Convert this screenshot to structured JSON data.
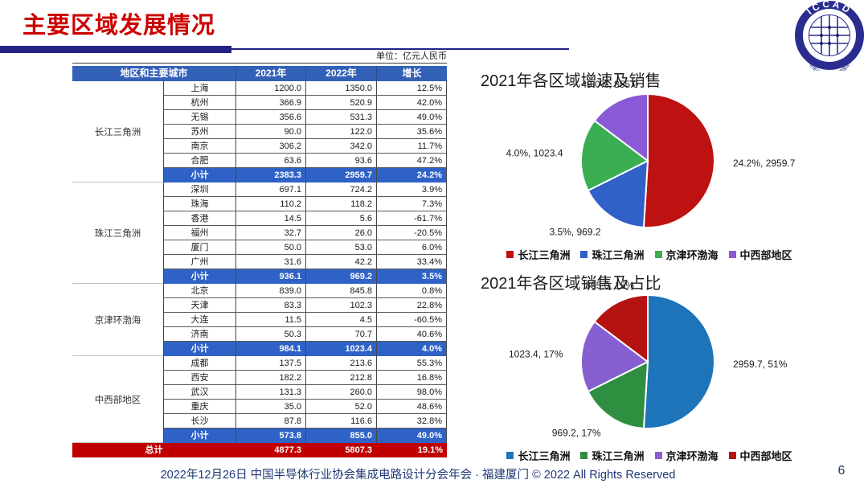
{
  "slide": {
    "title": "主要区域发展情况",
    "unit_label": "单位：亿元人民币",
    "footer": "2022年12月26日 中国半导体行业协会集成电路设计分会年会 · 福建厦门 © 2022 All Rights Reserved",
    "page_number": "6",
    "logo": {
      "acronym": "ICCAD",
      "ring_text": "中国半导体行业协会集成电路设计分会"
    }
  },
  "colors": {
    "title_red": "#cc0000",
    "bar_navy": "#232387",
    "table_header_blue": "#3361b8",
    "subtotal_blue": "#2f62c6",
    "total_red": "#c00000",
    "footer_navy": "#1f3876"
  },
  "table": {
    "headers": [
      "地区和主要城市",
      "2021年",
      "2022年",
      "增长"
    ],
    "groups": [
      {
        "region": "长江三角洲",
        "rows": [
          [
            "上海",
            "1200.0",
            "1350.0",
            "12.5%"
          ],
          [
            "杭州",
            "366.9",
            "520.9",
            "42.0%"
          ],
          [
            "无锡",
            "356.6",
            "531.3",
            "49.0%"
          ],
          [
            "苏州",
            "90.0",
            "122.0",
            "35.6%"
          ],
          [
            "南京",
            "306.2",
            "342.0",
            "11.7%"
          ],
          [
            "合肥",
            "63.6",
            "93.6",
            "47.2%"
          ]
        ],
        "subtotal": [
          "小计",
          "2383.3",
          "2959.7",
          "24.2%"
        ]
      },
      {
        "region": "珠江三角洲",
        "rows": [
          [
            "深圳",
            "697.1",
            "724.2",
            "3.9%"
          ],
          [
            "珠海",
            "110.2",
            "118.2",
            "7.3%"
          ],
          [
            "香港",
            "14.5",
            "5.6",
            "-61.7%"
          ],
          [
            "福州",
            "32.7",
            "26.0",
            "-20.5%"
          ],
          [
            "厦门",
            "50.0",
            "53.0",
            "6.0%"
          ],
          [
            "广州",
            "31.6",
            "42.2",
            "33.4%"
          ]
        ],
        "subtotal": [
          "小计",
          "936.1",
          "969.2",
          "3.5%"
        ]
      },
      {
        "region": "京津环渤海",
        "rows": [
          [
            "北京",
            "839.0",
            "845.8",
            "0.8%"
          ],
          [
            "天津",
            "83.3",
            "102.3",
            "22.8%"
          ],
          [
            "大连",
            "11.5",
            "4.5",
            "-60.5%"
          ],
          [
            "济南",
            "50.3",
            "70.7",
            "40.6%"
          ]
        ],
        "subtotal": [
          "小计",
          "984.1",
          "1023.4",
          "4.0%"
        ]
      },
      {
        "region": "中西部地区",
        "rows": [
          [
            "成都",
            "137.5",
            "213.6",
            "55.3%"
          ],
          [
            "西安",
            "182.2",
            "212.8",
            "16.8%"
          ],
          [
            "武汉",
            "131.3",
            "260.0",
            "98.0%"
          ],
          [
            "重庆",
            "35.0",
            "52.0",
            "48.6%"
          ],
          [
            "长沙",
            "87.8",
            "116.6",
            "32.8%"
          ]
        ],
        "subtotal": [
          "小计",
          "573.8",
          "855.0",
          "49.0%"
        ]
      }
    ],
    "total": [
      "总计",
      "4877.3",
      "5807.3",
      "19.1%"
    ]
  },
  "chart_data": [
    {
      "type": "pie",
      "title": "2021年各区域增速及销售",
      "legend_position": "bottom",
      "slices": [
        {
          "name": "长江三角洲",
          "value": 2959.7,
          "label": "24.2%, 2959.7",
          "color": "#be1111"
        },
        {
          "name": "珠江三角洲",
          "value": 969.2,
          "label": "3.5%, 969.2",
          "color": "#3160c8"
        },
        {
          "name": "京津环渤海",
          "value": 1023.4,
          "label": "4.0%, 1023.4",
          "color": "#3bad53"
        },
        {
          "name": "中西部地区",
          "value": 855.0,
          "label": "49.0%, 855.0",
          "color": "#8a5ad6"
        }
      ]
    },
    {
      "type": "pie",
      "title": "2021年各区域销售及占比",
      "legend_position": "bottom",
      "slices": [
        {
          "name": "长江三角洲",
          "value": 2959.7,
          "label": "2959.7, 51%",
          "color": "#1e74b8"
        },
        {
          "name": "珠江三角洲",
          "value": 969.2,
          "label": "969.2, 17%",
          "color": "#2e8f40"
        },
        {
          "name": "京津环渤海",
          "value": 1023.4,
          "label": "1023.4, 17%",
          "color": "#8660d0"
        },
        {
          "name": "中西部地区",
          "value": 855.0,
          "label": "855.0, 15%",
          "color": "#b51212"
        }
      ]
    }
  ]
}
